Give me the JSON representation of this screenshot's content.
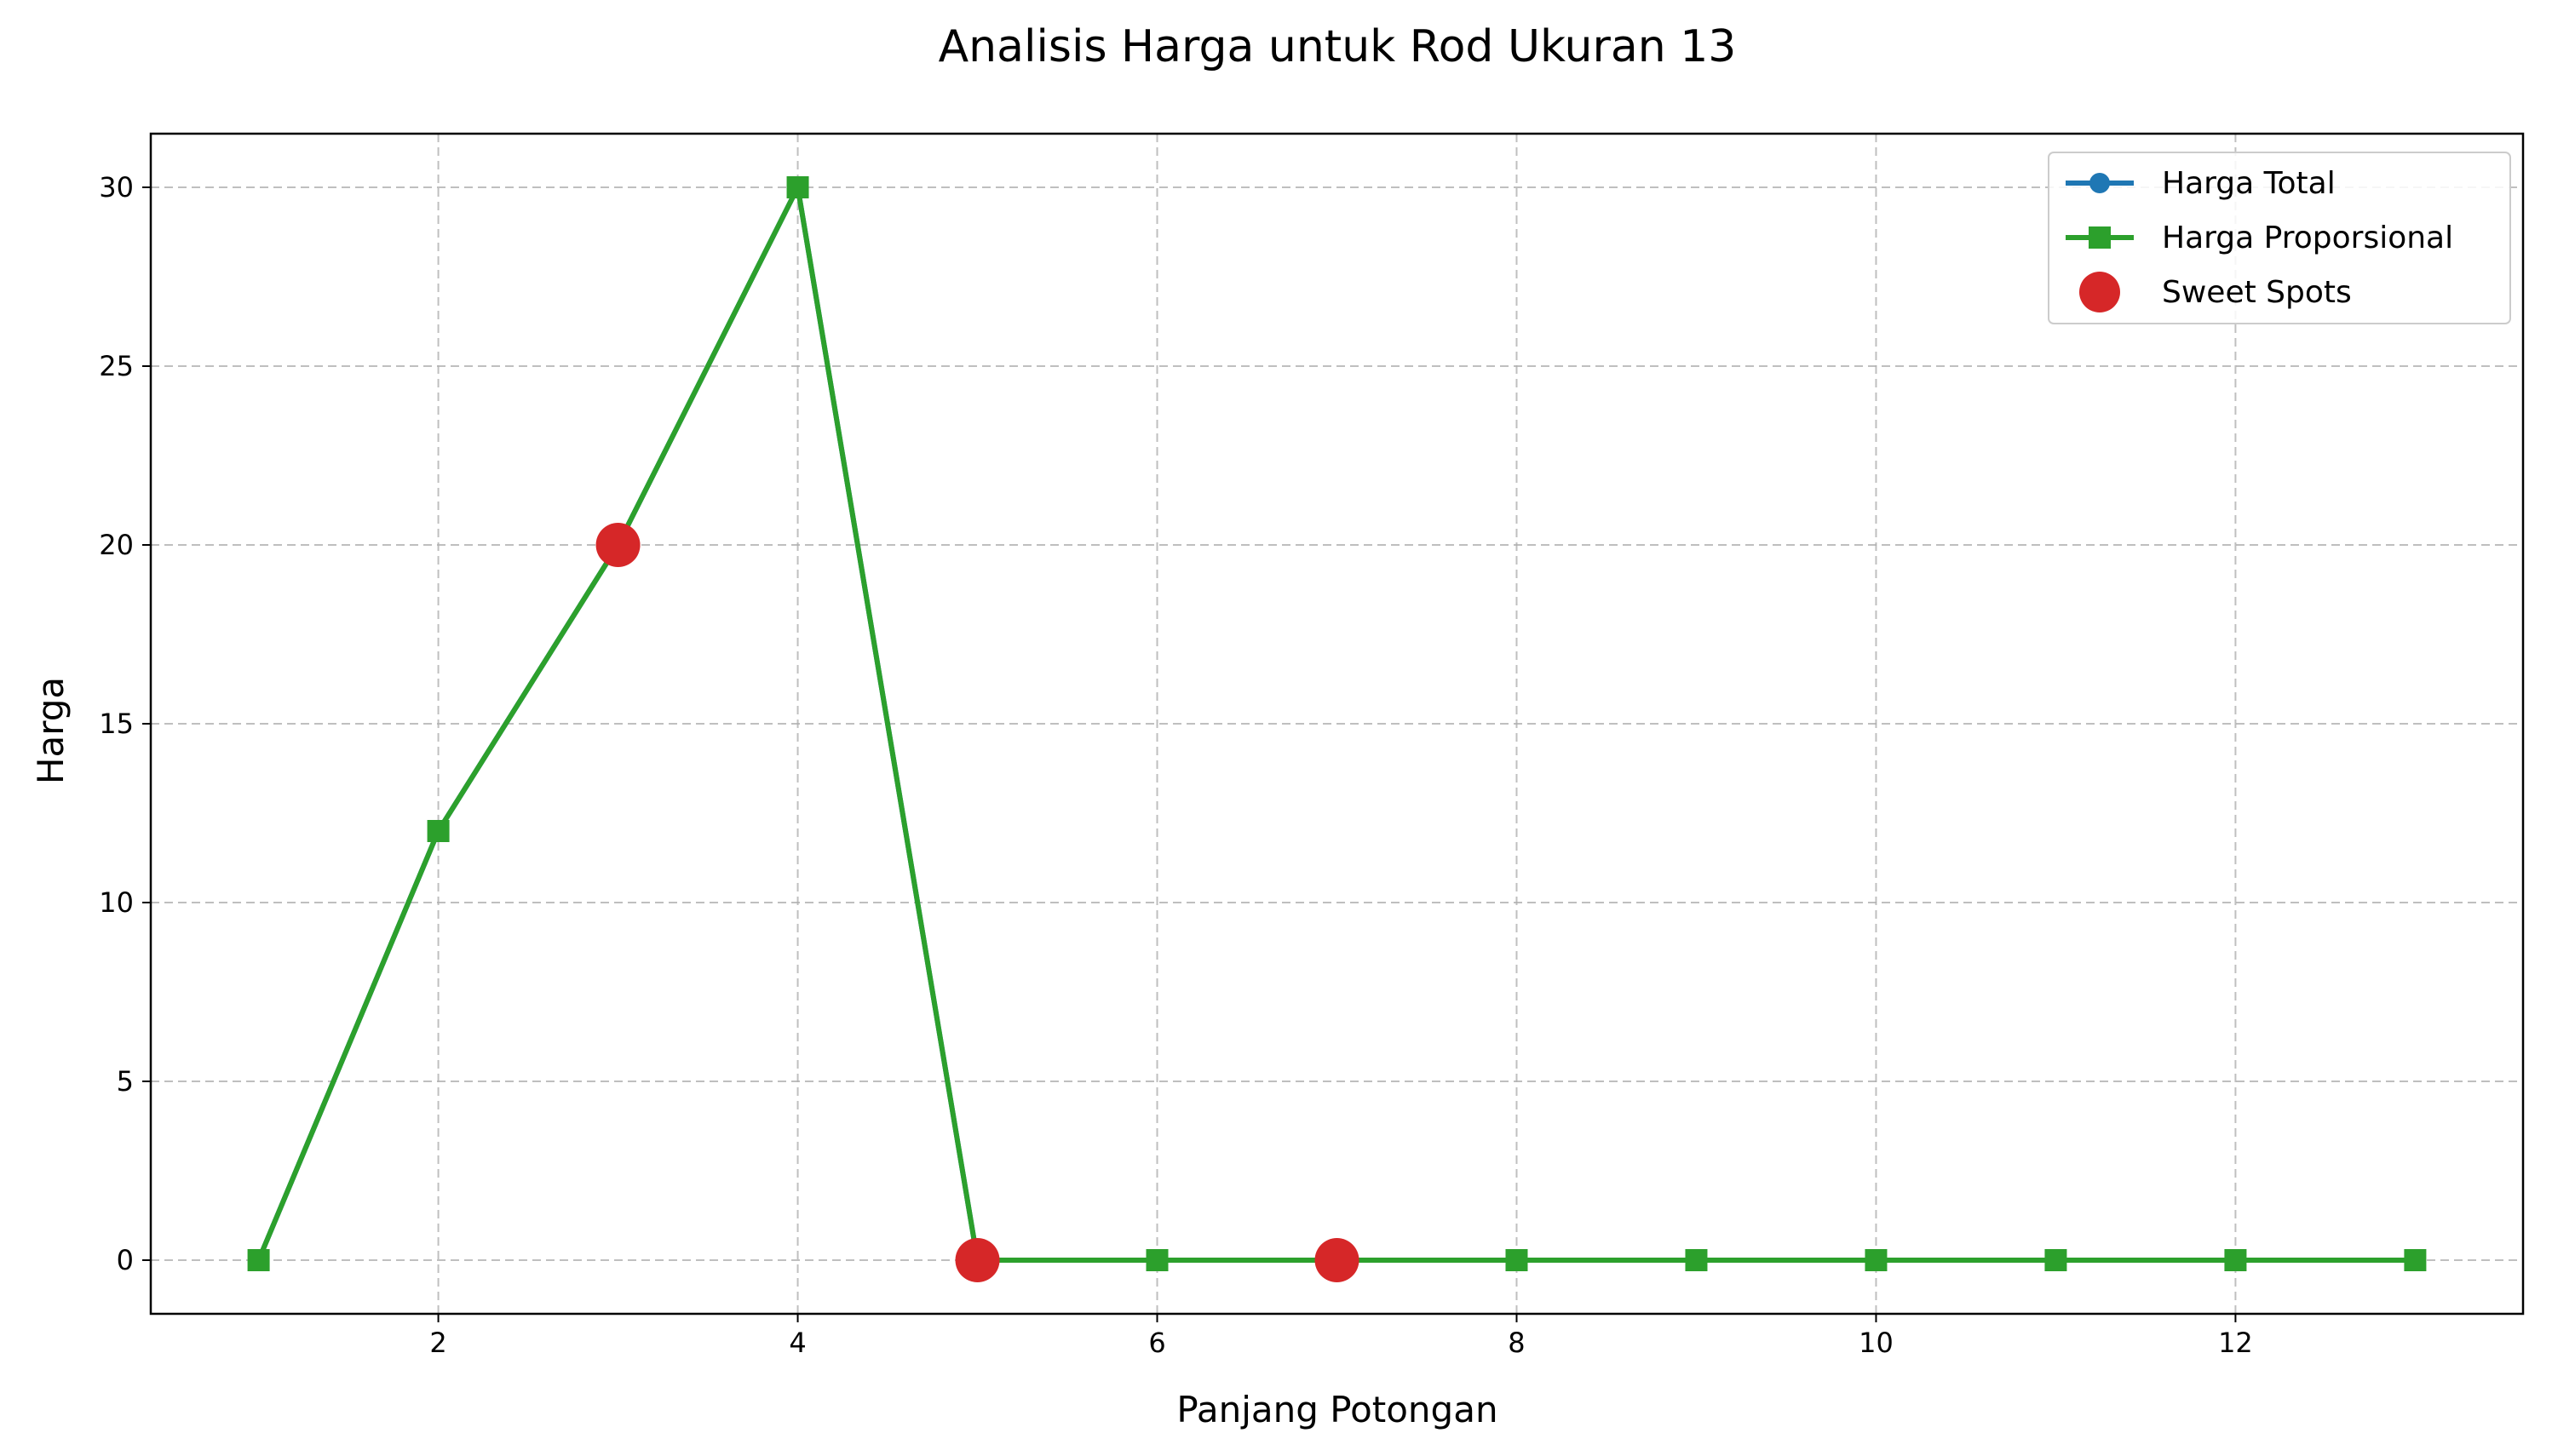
{
  "chart_data": {
    "type": "line",
    "title": "Analisis Harga untuk Rod Ukuran 13",
    "xlabel": "Panjang Potongan",
    "ylabel": "Harga",
    "xlim": [
      0.4,
      13.6
    ],
    "ylim": [
      -1.5,
      31.5
    ],
    "xticks": [
      2,
      4,
      6,
      8,
      10,
      12
    ],
    "yticks": [
      0,
      5,
      10,
      15,
      20,
      25,
      30
    ],
    "grid": true,
    "legend_position": "top-right",
    "x": [
      1,
      2,
      3,
      4,
      5,
      6,
      7,
      8,
      9,
      10,
      11,
      12,
      13
    ],
    "series": [
      {
        "name": "Harga Total",
        "marker": "circle",
        "color": "#1f77b4",
        "values": [
          0,
          12,
          20,
          30,
          0,
          0,
          0,
          0,
          0,
          0,
          0,
          0,
          0
        ]
      },
      {
        "name": "Harga Proporsional",
        "marker": "square",
        "color": "#2ca02c",
        "values": [
          0,
          12,
          20,
          30,
          0,
          0,
          0,
          0,
          0,
          0,
          0,
          0,
          0
        ]
      }
    ],
    "highlights": {
      "name": "Sweet Spots",
      "marker": "circle",
      "color": "#d62728",
      "points": [
        {
          "x": 3,
          "y": 20
        },
        {
          "x": 5,
          "y": 0
        },
        {
          "x": 7,
          "y": 0
        }
      ]
    }
  }
}
